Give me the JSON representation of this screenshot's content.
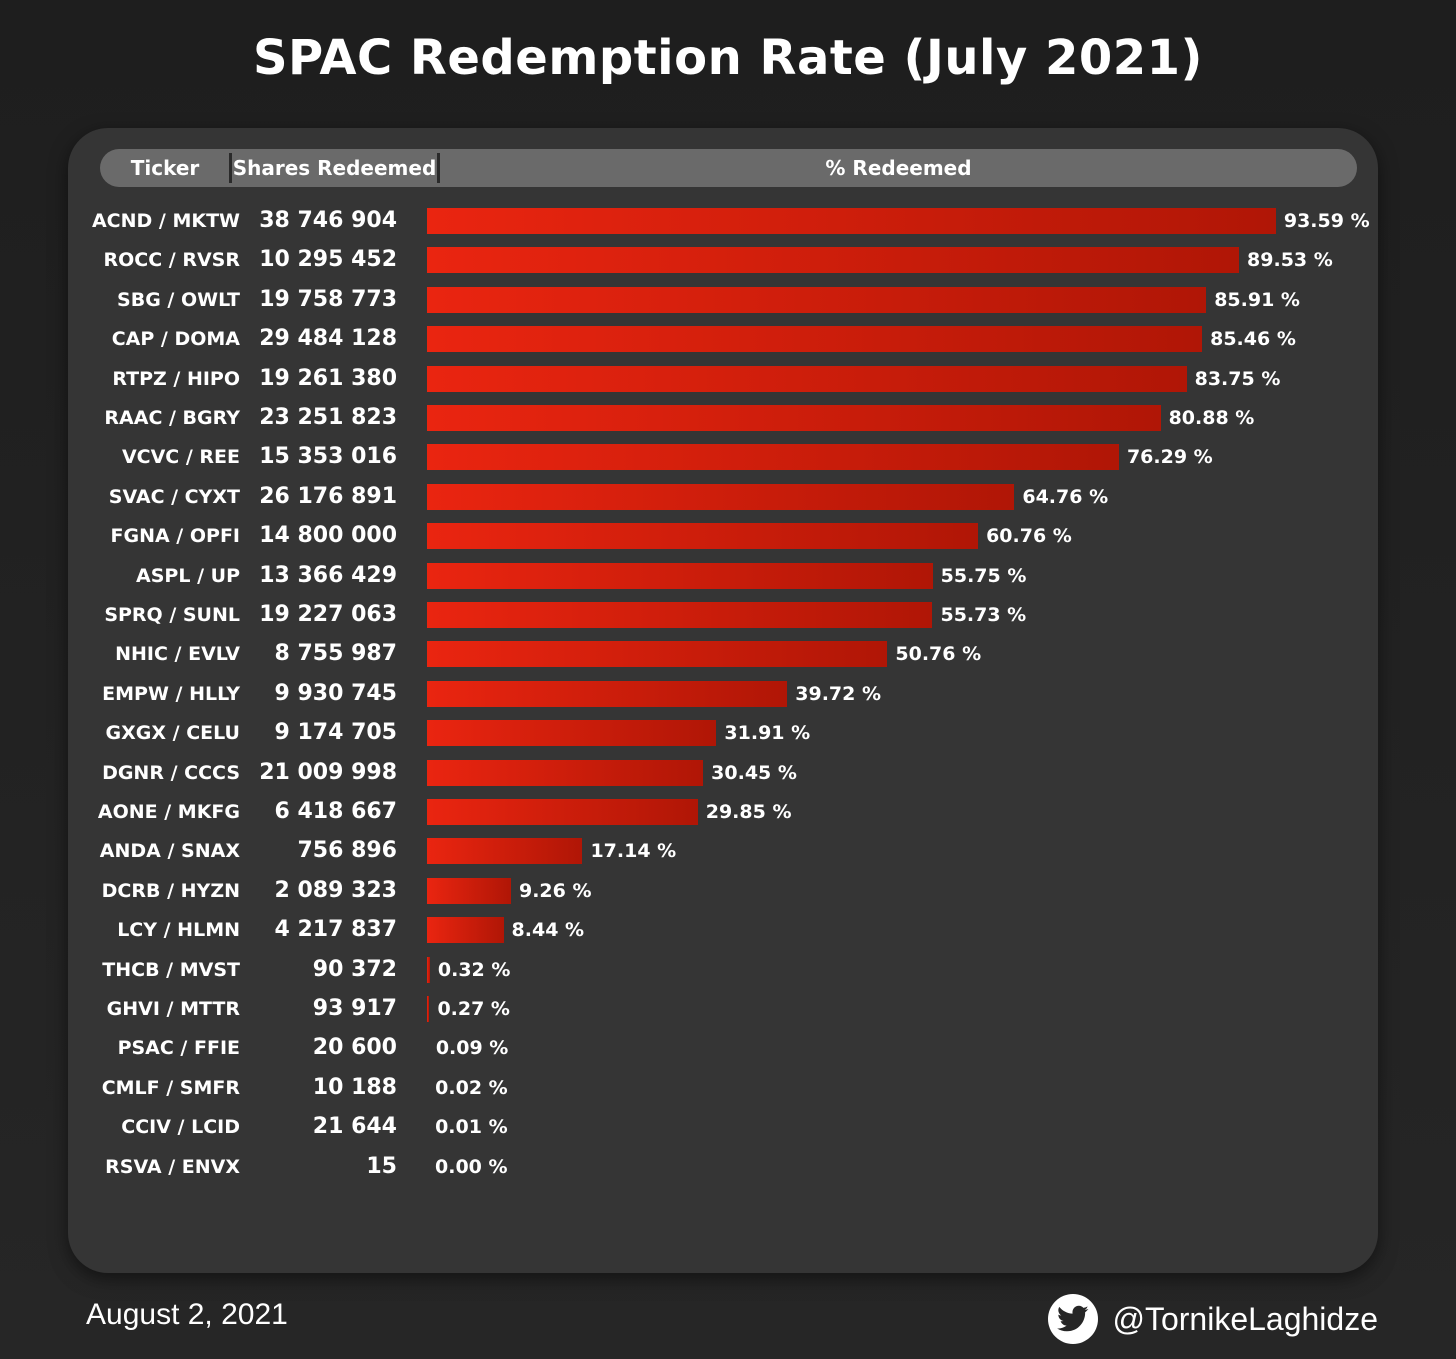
{
  "title": "SPAC Redemption Rate (July 2021)",
  "footer": {
    "date": "August 2, 2021",
    "handle": "@TornikeLaghidze"
  },
  "chart_data": {
    "type": "table",
    "title": "SPAC Redemption Rate (July 2021)",
    "columns": [
      "Ticker",
      "Shares Redeemed",
      "% Redeemed"
    ],
    "xlim": [
      0,
      100
    ],
    "bar_color": "#e02010",
    "rows": [
      {
        "ticker": "ACND / MKTW",
        "shares": "38 746 904",
        "pct": 93.59,
        "pct_label": "93.59 %"
      },
      {
        "ticker": "ROCC / RVSR",
        "shares": "10 295 452",
        "pct": 89.53,
        "pct_label": "89.53 %"
      },
      {
        "ticker": "SBG / OWLT",
        "shares": "19 758 773",
        "pct": 85.91,
        "pct_label": "85.91 %"
      },
      {
        "ticker": "CAP / DOMA",
        "shares": "29 484 128",
        "pct": 85.46,
        "pct_label": "85.46 %"
      },
      {
        "ticker": "RTPZ / HIPO",
        "shares": "19 261 380",
        "pct": 83.75,
        "pct_label": "83.75 %"
      },
      {
        "ticker": "RAAC / BGRY",
        "shares": "23 251 823",
        "pct": 80.88,
        "pct_label": "80.88 %"
      },
      {
        "ticker": "VCVC / REE",
        "shares": "15 353 016",
        "pct": 76.29,
        "pct_label": "76.29 %"
      },
      {
        "ticker": "SVAC / CYXT",
        "shares": "26 176 891",
        "pct": 64.76,
        "pct_label": "64.76 %"
      },
      {
        "ticker": "FGNA / OPFI",
        "shares": "14 800 000",
        "pct": 60.76,
        "pct_label": "60.76 %"
      },
      {
        "ticker": "ASPL / UP",
        "shares": "13 366 429",
        "pct": 55.75,
        "pct_label": "55.75 %"
      },
      {
        "ticker": "SPRQ / SUNL",
        "shares": "19 227 063",
        "pct": 55.73,
        "pct_label": "55.73 %"
      },
      {
        "ticker": "NHIC / EVLV",
        "shares": "8 755 987",
        "pct": 50.76,
        "pct_label": "50.76 %"
      },
      {
        "ticker": "EMPW / HLLY",
        "shares": "9 930 745",
        "pct": 39.72,
        "pct_label": "39.72 %"
      },
      {
        "ticker": "GXGX / CELU",
        "shares": "9 174 705",
        "pct": 31.91,
        "pct_label": "31.91 %"
      },
      {
        "ticker": "DGNR / CCCS",
        "shares": "21 009 998",
        "pct": 30.45,
        "pct_label": "30.45 %"
      },
      {
        "ticker": "AONE / MKFG",
        "shares": "6 418 667",
        "pct": 29.85,
        "pct_label": "29.85 %"
      },
      {
        "ticker": "ANDA / SNAX",
        "shares": "756 896",
        "pct": 17.14,
        "pct_label": "17.14 %"
      },
      {
        "ticker": "DCRB / HYZN",
        "shares": "2 089 323",
        "pct": 9.26,
        "pct_label": "9.26 %"
      },
      {
        "ticker": "LCY / HLMN",
        "shares": "4 217 837",
        "pct": 8.44,
        "pct_label": "8.44 %"
      },
      {
        "ticker": "THCB / MVST",
        "shares": "90 372",
        "pct": 0.32,
        "pct_label": "0.32 %"
      },
      {
        "ticker": "GHVI / MTTR",
        "shares": "93 917",
        "pct": 0.27,
        "pct_label": "0.27 %"
      },
      {
        "ticker": "PSAC / FFIE",
        "shares": "20 600",
        "pct": 0.09,
        "pct_label": "0.09 %"
      },
      {
        "ticker": "CMLF / SMFR",
        "shares": "10 188",
        "pct": 0.02,
        "pct_label": "0.02 %"
      },
      {
        "ticker": "CCIV / LCID",
        "shares": "21 644",
        "pct": 0.01,
        "pct_label": "0.01 %"
      },
      {
        "ticker": "RSVA / ENVX",
        "shares": "15",
        "pct": 0.0,
        "pct_label": "0.00 %"
      }
    ]
  }
}
